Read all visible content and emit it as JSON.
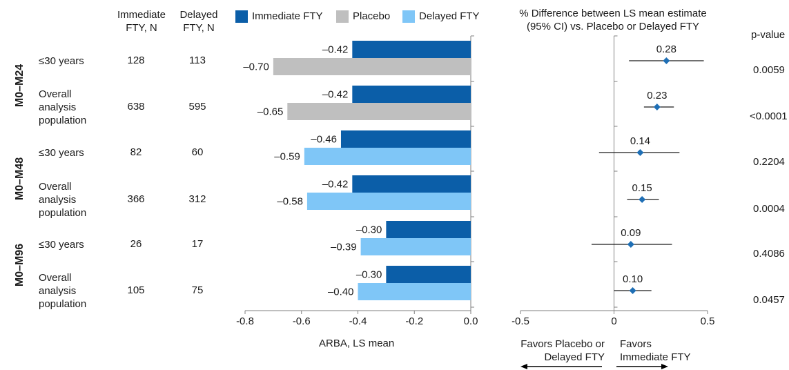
{
  "headers": {
    "immediate_n": [
      "Immediate",
      "FTY, N"
    ],
    "delayed_n": [
      "Delayed",
      "FTY, N"
    ],
    "forest_title": [
      "% Difference between  LS mean estimate",
      "(95% CI) vs. Placebo or Delayed FTY"
    ],
    "pvalue": "p-value"
  },
  "periods": [
    "M0–M24",
    "M0–M48",
    "M0–M96"
  ],
  "rows": [
    {
      "subgroup": [
        "≤30 years"
      ],
      "immediate_n": "128",
      "delayed_n": "113",
      "pvalue": "0.0059"
    },
    {
      "subgroup": [
        "Overall",
        "analysis",
        "population"
      ],
      "immediate_n": "638",
      "delayed_n": "595",
      "pvalue": "<0.0001"
    },
    {
      "subgroup": [
        "≤30 years"
      ],
      "immediate_n": "82",
      "delayed_n": "60",
      "pvalue": "0.2204"
    },
    {
      "subgroup": [
        "Overall",
        "analysis",
        "population"
      ],
      "immediate_n": "366",
      "delayed_n": "312",
      "pvalue": "0.0004"
    },
    {
      "subgroup": [
        "≤30 years"
      ],
      "immediate_n": "26",
      "delayed_n": "17",
      "pvalue": "0.4086"
    },
    {
      "subgroup": [
        "Overall",
        "analysis",
        "population"
      ],
      "immediate_n": "105",
      "delayed_n": "75",
      "pvalue": "0.0457"
    }
  ],
  "legend": [
    {
      "label": "Immediate FTY",
      "color": "#0b5ea8"
    },
    {
      "label": "Placebo",
      "color": "#bfbfbf"
    },
    {
      "label": "Delayed FTY",
      "color": "#7fc6f7"
    }
  ],
  "chart_data": [
    {
      "type": "bar",
      "orientation": "horizontal",
      "xlabel": "ARBA, LS mean",
      "xlim": [
        -0.8,
        0.0
      ],
      "xticks": [
        "-0.8",
        "-0.6",
        "-0.4",
        "-0.2",
        "0.0"
      ],
      "bars": [
        {
          "row": 0,
          "series": "Immediate FTY",
          "value": -0.42,
          "label": "–0.42"
        },
        {
          "row": 0,
          "series": "Placebo",
          "value": -0.7,
          "label": "–0.70"
        },
        {
          "row": 1,
          "series": "Immediate FTY",
          "value": -0.42,
          "label": "–0.42"
        },
        {
          "row": 1,
          "series": "Placebo",
          "value": -0.65,
          "label": "–0.65"
        },
        {
          "row": 2,
          "series": "Immediate FTY",
          "value": -0.46,
          "label": "–0.46"
        },
        {
          "row": 2,
          "series": "Delayed FTY",
          "value": -0.59,
          "label": "–0.59"
        },
        {
          "row": 3,
          "series": "Immediate FTY",
          "value": -0.42,
          "label": "–0.42"
        },
        {
          "row": 3,
          "series": "Delayed FTY",
          "value": -0.58,
          "label": "–0.58"
        },
        {
          "row": 4,
          "series": "Immediate FTY",
          "value": -0.3,
          "label": "–0.30"
        },
        {
          "row": 4,
          "series": "Delayed FTY",
          "value": -0.39,
          "label": "–0.39"
        },
        {
          "row": 5,
          "series": "Immediate FTY",
          "value": -0.3,
          "label": "–0.30"
        },
        {
          "row": 5,
          "series": "Delayed FTY",
          "value": -0.4,
          "label": "–0.40"
        }
      ]
    },
    {
      "type": "scatter",
      "subtype": "forest",
      "xlim": [
        -0.5,
        0.5
      ],
      "xticks": [
        "-0.5",
        "0",
        "0.5"
      ],
      "point_color": "#1f6fb5",
      "points": [
        {
          "row": 0,
          "estimate": 0.28,
          "ci": [
            0.08,
            0.48
          ],
          "label": "0.28"
        },
        {
          "row": 1,
          "estimate": 0.23,
          "ci": [
            0.16,
            0.32
          ],
          "label": "0.23"
        },
        {
          "row": 2,
          "estimate": 0.14,
          "ci": [
            -0.08,
            0.35
          ],
          "label": "0.14"
        },
        {
          "row": 3,
          "estimate": 0.15,
          "ci": [
            0.07,
            0.24
          ],
          "label": "0.15"
        },
        {
          "row": 4,
          "estimate": 0.09,
          "ci": [
            -0.12,
            0.31
          ],
          "label": "0.09"
        },
        {
          "row": 5,
          "estimate": 0.1,
          "ci": [
            0.0,
            0.2
          ],
          "label": "0.10"
        }
      ],
      "favor_left": [
        "Favors Placebo or",
        "Delayed FTY"
      ],
      "favor_right": [
        "Favors",
        "Immediate FTY"
      ]
    }
  ]
}
